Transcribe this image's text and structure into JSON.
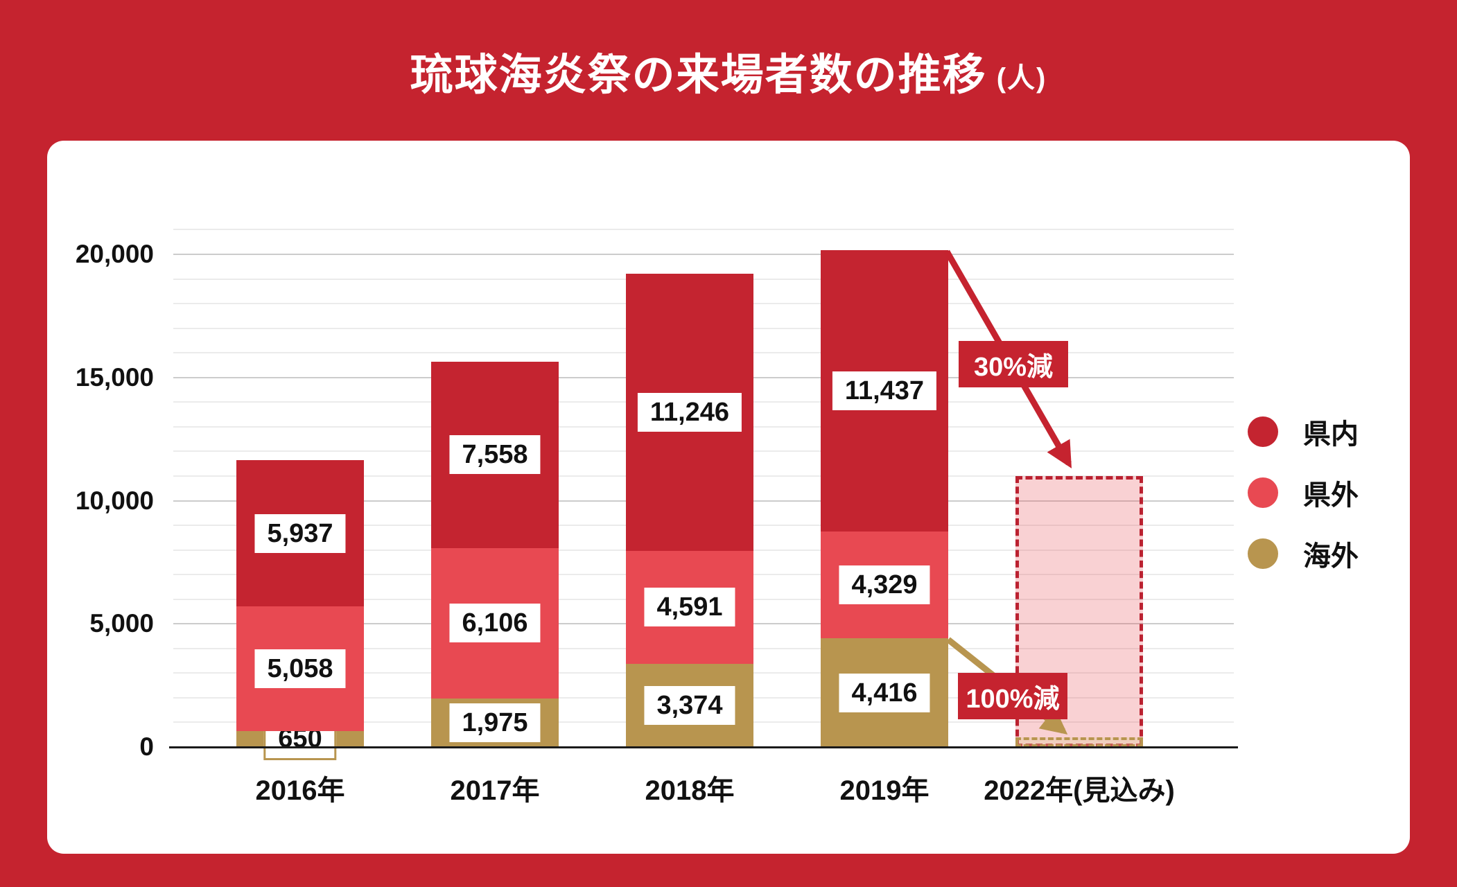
{
  "title": {
    "main": "琉球海炎祭の来場者数の推移",
    "unit": "(人)"
  },
  "colors": {
    "frame": "#C5232F",
    "panel": "#FFFFFF",
    "annotation_bg": "#C5232F",
    "kennai": "#C42430",
    "kengai": "#E84952",
    "kaigai": "#B8954F",
    "forecast_fill": "rgba(231,76,86,0.26)",
    "forecast_border": "#BB2130",
    "forecast_gold_fill": "rgba(224,201,150,0.35)",
    "grid_minor": "#EBEBEB",
    "grid_major": "#CCCCCC",
    "axis_line": "#1A1A1A"
  },
  "legend": [
    {
      "key": "kennai",
      "label": "県内",
      "color": "#C42430"
    },
    {
      "key": "kengai",
      "label": "県外",
      "color": "#E84952"
    },
    {
      "key": "kaigai",
      "label": "海外",
      "color": "#B8954F"
    }
  ],
  "annotations": [
    {
      "text": "30%減"
    },
    {
      "text": "100%減"
    }
  ],
  "chart_data": {
    "type": "bar",
    "stacked": true,
    "title": "琉球海炎祭の来場者数の推移 (人)",
    "categories": [
      "2016年",
      "2017年",
      "2018年",
      "2019年",
      "2022年(見込み)"
    ],
    "series": [
      {
        "name": "海外",
        "key": "kaigai",
        "color": "#B8954F",
        "values": [
          650,
          1975,
          3374,
          4416,
          null
        ]
      },
      {
        "name": "県外",
        "key": "kengai",
        "color": "#E84952",
        "values": [
          5058,
          6106,
          4591,
          4329,
          null
        ]
      },
      {
        "name": "県内",
        "key": "kennai",
        "color": "#C42430",
        "values": [
          5937,
          7558,
          11246,
          11437,
          null
        ]
      }
    ],
    "totals": [
      11645,
      15639,
      19211,
      20182,
      11000
    ],
    "forecast": {
      "category": "2022年(見込み)",
      "estimated_total": 11000,
      "domestic_note": "30%減",
      "overseas_note": "100%減",
      "overseas_value": 0
    },
    "ylabel": "人",
    "ylim": [
      0,
      21000
    ],
    "yticks": [
      0,
      5000,
      10000,
      15000,
      20000
    ],
    "grid": "horizontal, minor every 1000, major every 5000",
    "legend_position": "right"
  }
}
